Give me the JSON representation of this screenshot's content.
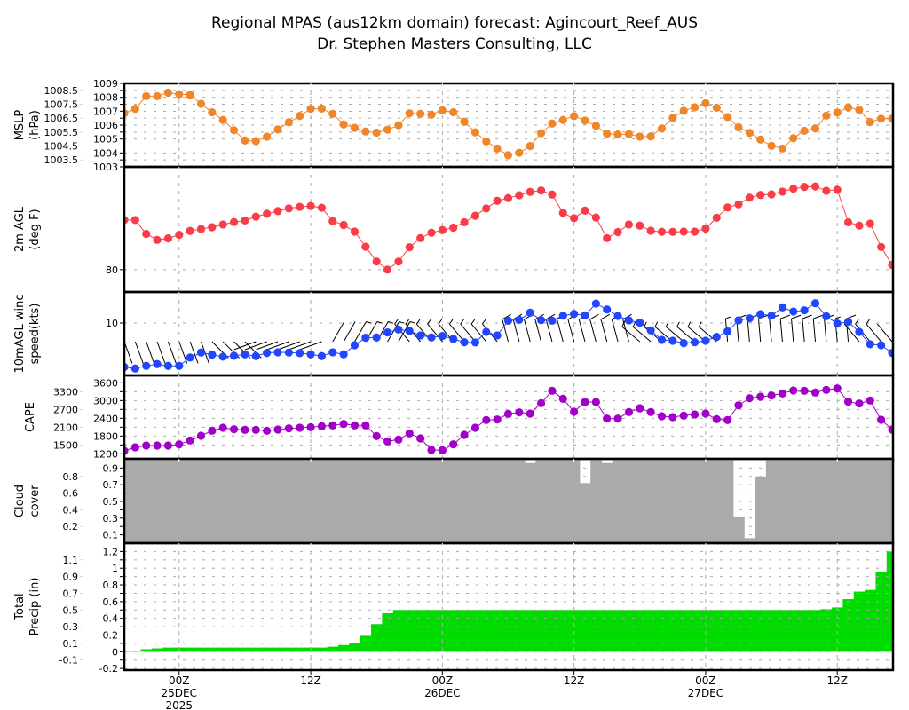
{
  "title": {
    "line1": "Regional MPAS (aus12km domain) forecast: Agincourt_Reef_AUS",
    "line2": "Dr. Stephen Masters Consulting, LLC"
  },
  "time_axis": {
    "ticks": [
      {
        "hour_index": 5,
        "label": "00Z",
        "date": "25DEC",
        "year": "2025"
      },
      {
        "hour_index": 17,
        "label": "12Z"
      },
      {
        "hour_index": 29,
        "label": "00Z",
        "date": "26DEC"
      },
      {
        "hour_index": 41,
        "label": "12Z"
      },
      {
        "hour_index": 53,
        "label": "00Z",
        "date": "27DEC"
      },
      {
        "hour_index": 65,
        "label": "12Z"
      }
    ]
  },
  "colors": {
    "mslp": "#f0862a",
    "temp": "#fa3c46",
    "wind": "#2246ff",
    "cape": "#a000c8",
    "cloud": "#aaaaaa",
    "precip": "#00dc00"
  },
  "chart_data": [
    {
      "id": "mslp",
      "type": "line",
      "ylabel_lines": [
        "MSLP",
        "(hPa)"
      ],
      "ylim": [
        1003,
        1009
      ],
      "yticks": [
        "1003",
        "1003.5",
        "1004",
        "1004.5",
        "1005",
        "1005.5",
        "1006",
        "1006.5",
        "1007",
        "1007.5",
        "1008",
        "1008.5",
        "1009"
      ],
      "values": [
        1006.85,
        1007.17,
        1008.08,
        1008.08,
        1008.33,
        1008.23,
        1008.18,
        1007.53,
        1006.92,
        1006.37,
        1005.63,
        1004.89,
        1004.85,
        1005.17,
        1005.69,
        1006.2,
        1006.66,
        1007.17,
        1007.19,
        1006.81,
        1006.05,
        1005.8,
        1005.54,
        1005.46,
        1005.67,
        1005.99,
        1006.85,
        1006.81,
        1006.75,
        1007.06,
        1006.92,
        1006.24,
        1005.48,
        1004.83,
        1004.32,
        1003.84,
        1004.01,
        1004.49,
        1005.42,
        1006.11,
        1006.37,
        1006.65,
        1006.33,
        1005.95,
        1005.38,
        1005.32,
        1005.35,
        1005.17,
        1005.19,
        1005.76,
        1006.52,
        1007.03,
        1007.28,
        1007.57,
        1007.25,
        1006.58,
        1005.84,
        1005.44,
        1004.96,
        1004.51,
        1004.32,
        1005.06,
        1005.59,
        1005.76,
        1006.68,
        1006.9,
        1007.28,
        1007.09,
        1006.22,
        1006.46,
        1006.46
      ]
    },
    {
      "id": "temp",
      "type": "line",
      "ylabel_lines": [
        "2m AGL",
        "(deg F)"
      ],
      "ylim": [
        79.0,
        84.6
      ],
      "yticks": [
        "80"
      ],
      "values": [
        82.22,
        82.22,
        81.6,
        81.33,
        81.4,
        81.56,
        81.73,
        81.82,
        81.9,
        82.02,
        82.13,
        82.2,
        82.37,
        82.5,
        82.62,
        82.74,
        82.81,
        82.85,
        82.77,
        82.17,
        82.0,
        81.7,
        81.02,
        80.36,
        80.0,
        80.36,
        81.0,
        81.41,
        81.65,
        81.77,
        81.88,
        82.12,
        82.41,
        82.74,
        83.08,
        83.2,
        83.33,
        83.48,
        83.54,
        83.36,
        82.54,
        82.3,
        82.64,
        82.33,
        81.41,
        81.68,
        82.02,
        81.97,
        81.74,
        81.69,
        81.69,
        81.7,
        81.7,
        81.84,
        82.32,
        82.78,
        82.92,
        83.22,
        83.34,
        83.37,
        83.49,
        83.62,
        83.7,
        83.72,
        83.53,
        83.57,
        82.12,
        81.97,
        82.06,
        81.01,
        80.21
      ]
    },
    {
      "id": "wind",
      "type": "line",
      "ylabel_lines": [
        "10mAGL winc",
        "speed(kts)"
      ],
      "ylim": [
        0.9,
        15.4
      ],
      "yticks": [
        "10"
      ],
      "values": [
        2.36,
        2.1,
        2.56,
        2.87,
        2.56,
        2.56,
        4.0,
        4.87,
        4.51,
        4.15,
        4.31,
        4.56,
        4.26,
        4.82,
        4.92,
        4.87,
        4.77,
        4.56,
        4.26,
        4.92,
        4.56,
        6.15,
        7.44,
        7.49,
        8.36,
        8.87,
        8.62,
        7.85,
        7.49,
        7.74,
        7.23,
        6.66,
        6.62,
        8.46,
        7.85,
        10.41,
        10.56,
        11.8,
        10.51,
        10.41,
        11.28,
        11.59,
        11.33,
        13.38,
        12.36,
        11.23,
        10.46,
        10.05,
        8.72,
        7.08,
        6.92,
        6.51,
        6.66,
        6.92,
        7.59,
        8.56,
        10.46,
        10.82,
        11.54,
        11.28,
        12.72,
        12.0,
        12.21,
        13.44,
        11.18,
        9.9,
        10.21,
        8.46,
        6.31,
        6.15,
        4.82
      ],
      "direction_deg": [
        160,
        160,
        160,
        160,
        160,
        160,
        160,
        160,
        135,
        135,
        135,
        135,
        250,
        250,
        250,
        250,
        250,
        250,
        250,
        30,
        30,
        30,
        30,
        30,
        30,
        30,
        320,
        320,
        320,
        320,
        320,
        320,
        320,
        320,
        320,
        345,
        345,
        345,
        345,
        345,
        345,
        345,
        345,
        345,
        345,
        345,
        345,
        310,
        310,
        310,
        310,
        310,
        310,
        310,
        310,
        355,
        355,
        355,
        355,
        355,
        355,
        355,
        355,
        355,
        355,
        355,
        355,
        320,
        320,
        320,
        320
      ]
    },
    {
      "id": "cape",
      "type": "line",
      "ylabel_lines": [
        "CAPE"
      ],
      "ylim": [
        1030,
        3850
      ],
      "yticks": [
        "1200",
        "1500",
        "1800",
        "2100",
        "2400",
        "2700",
        "3000",
        "3300",
        "3600"
      ],
      "values": [
        1300,
        1420,
        1480,
        1480,
        1480,
        1520,
        1650,
        1810,
        1980,
        2080,
        2030,
        2010,
        2010,
        1980,
        2020,
        2060,
        2080,
        2100,
        2130,
        2160,
        2210,
        2160,
        2160,
        1800,
        1620,
        1680,
        1890,
        1720,
        1330,
        1320,
        1520,
        1840,
        2080,
        2340,
        2360,
        2550,
        2600,
        2560,
        2910,
        3330,
        3060,
        2620,
        2950,
        2950,
        2390,
        2390,
        2610,
        2740,
        2610,
        2470,
        2440,
        2490,
        2530,
        2560,
        2370,
        2340,
        2840,
        3080,
        3130,
        3170,
        3240,
        3340,
        3330,
        3270,
        3360,
        3410,
        2960,
        2900,
        3000,
        2350,
        2020
      ]
    },
    {
      "id": "cloud",
      "type": "bar",
      "ylabel_lines": [
        "Cloud",
        "cover"
      ],
      "ylim": [
        0,
        1.01
      ],
      "yticks": [
        "0.1",
        "0.2",
        "0.3",
        "0.4",
        "0.5",
        "0.6",
        "0.7",
        "0.8",
        "0.9"
      ],
      "values": [
        1,
        1,
        1,
        1,
        1,
        1,
        1,
        1,
        1,
        1,
        1,
        1,
        1,
        1,
        1,
        1,
        1,
        1,
        1,
        1,
        1,
        1,
        1,
        1,
        1,
        1,
        1,
        1,
        1,
        1,
        1,
        1,
        1,
        1,
        1,
        1,
        1,
        0.96,
        1,
        1,
        1,
        1,
        0.72,
        1,
        0.96,
        1,
        1,
        1,
        1,
        1,
        1,
        1,
        1,
        1,
        1,
        1,
        0.32,
        0.06,
        0.8,
        1,
        1,
        1,
        1,
        1,
        1,
        1,
        1,
        1,
        1,
        1,
        1
      ]
    },
    {
      "id": "precip",
      "type": "bar",
      "ylabel_lines": [
        "Total",
        "Precip (in)"
      ],
      "ylim": [
        -0.22,
        1.3
      ],
      "yticks": [
        "-0.2",
        "-0.1",
        "0",
        "0.1",
        "0.2",
        "0.3",
        "0.4",
        "0.5",
        "0.6",
        "0.7",
        "0.8",
        "0.9",
        "1",
        "1.1",
        "1.2"
      ],
      "values": [
        0.005,
        0.005,
        0.03,
        0.04,
        0.05,
        0.05,
        0.05,
        0.05,
        0.05,
        0.05,
        0.05,
        0.05,
        0.05,
        0.05,
        0.05,
        0.05,
        0.05,
        0.05,
        0.05,
        0.06,
        0.08,
        0.11,
        0.19,
        0.33,
        0.46,
        0.5,
        0.5,
        0.5,
        0.5,
        0.5,
        0.5,
        0.5,
        0.5,
        0.5,
        0.5,
        0.5,
        0.5,
        0.5,
        0.5,
        0.5,
        0.5,
        0.5,
        0.5,
        0.5,
        0.5,
        0.5,
        0.5,
        0.5,
        0.5,
        0.5,
        0.5,
        0.5,
        0.5,
        0.5,
        0.5,
        0.5,
        0.5,
        0.5,
        0.5,
        0.5,
        0.5,
        0.5,
        0.5,
        0.5,
        0.51,
        0.53,
        0.63,
        0.72,
        0.74,
        0.96,
        1.2
      ]
    }
  ]
}
